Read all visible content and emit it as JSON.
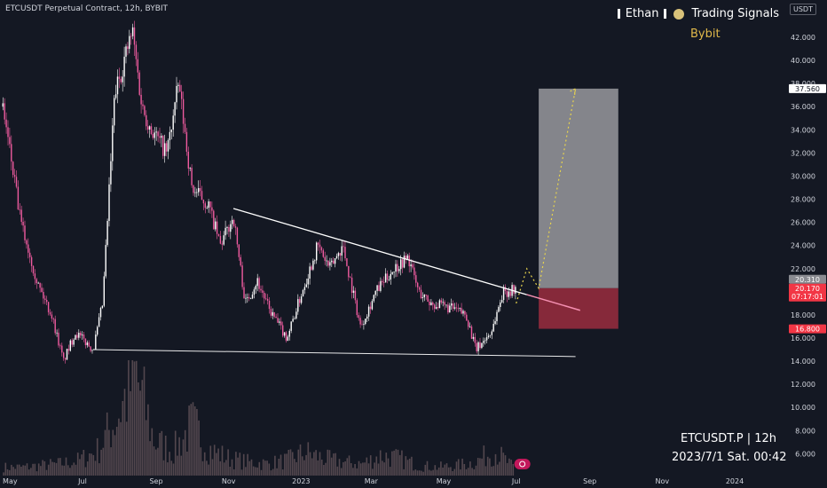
{
  "header": {
    "symbol_title": "ETCUSDT Perpetual Contract, 12h, BYBIT",
    "author": "Ethan",
    "channel": "Trading Signals",
    "exchange": "Bybit",
    "unit_badge": "USDT"
  },
  "watermark": {
    "symbol_line": "ETCUSDT.P | 12h",
    "date_line": "2023/7/1 Sat. 00:42"
  },
  "colors": {
    "background": "#141823",
    "candle": "#ef5b9f",
    "volume": "#c9a0a0",
    "profit_zone": "#8a8b91",
    "stop_zone": "#8c2a3c",
    "trend_line": "#ffffff",
    "projection": "#e8d44d",
    "price_tag": "#f23645"
  },
  "chart_data": {
    "type": "candlestick",
    "x_tick_labels": [
      "May",
      "Jul",
      "Sep",
      "Nov",
      "2023",
      "Mar",
      "May",
      "Jul",
      "Sep",
      "Nov",
      "2024"
    ],
    "y_tick_labels": [
      "6.000",
      "8.000",
      "10.000",
      "12.000",
      "14.000",
      "16.000",
      "18.000",
      "20.000",
      "22.000",
      "24.000",
      "26.000",
      "28.000",
      "30.000",
      "32.000",
      "34.000",
      "36.000",
      "38.000",
      "40.000",
      "42.000"
    ],
    "ylim": [
      5,
      43.5
    ],
    "price_path": [
      [
        "2022-04-25",
        36.0
      ],
      [
        "2022-05-10",
        26.0
      ],
      [
        "2022-05-25",
        20.5
      ],
      [
        "2022-06-05",
        18.0
      ],
      [
        "2022-06-15",
        14.0
      ],
      [
        "2022-06-25",
        16.5
      ],
      [
        "2022-07-10",
        15.0
      ],
      [
        "2022-07-18",
        19.0
      ],
      [
        "2022-07-28",
        37.0
      ],
      [
        "2022-08-05",
        40.0
      ],
      [
        "2022-08-12",
        42.5
      ],
      [
        "2022-08-20",
        36.0
      ],
      [
        "2022-08-28",
        34.0
      ],
      [
        "2022-09-10",
        32.0
      ],
      [
        "2022-09-20",
        38.0
      ],
      [
        "2022-10-01",
        29.0
      ],
      [
        "2022-10-15",
        27.5
      ],
      [
        "2022-10-25",
        24.0
      ],
      [
        "2022-11-05",
        26.5
      ],
      [
        "2022-11-15",
        19.0
      ],
      [
        "2022-11-25",
        21.0
      ],
      [
        "2022-12-05",
        18.5
      ],
      [
        "2022-12-20",
        16.0
      ],
      [
        "2023-01-05",
        21.0
      ],
      [
        "2023-01-15",
        24.0
      ],
      [
        "2023-01-25",
        22.0
      ],
      [
        "2023-02-05",
        24.0
      ],
      [
        "2023-02-20",
        17.0
      ],
      [
        "2023-03-05",
        20.0
      ],
      [
        "2023-03-20",
        22.0
      ],
      [
        "2023-04-01",
        23.0
      ],
      [
        "2023-04-10",
        20.0
      ],
      [
        "2023-04-20",
        19.0
      ],
      [
        "2023-05-10",
        18.5
      ],
      [
        "2023-05-20",
        18.0
      ],
      [
        "2023-05-28",
        15.0
      ],
      [
        "2023-06-10",
        16.5
      ],
      [
        "2023-06-20",
        20.0
      ],
      [
        "2023-07-01",
        20.17
      ]
    ],
    "volume_path": [
      0.5,
      0.5,
      0.6,
      0.7,
      0.9,
      1.5,
      3.5,
      6.0,
      2.0,
      1.5,
      3.0,
      1.5,
      1.0,
      0.8,
      0.7,
      0.9,
      1.4,
      1.0,
      0.8,
      0.7,
      1.2,
      1.0,
      0.6,
      0.5,
      0.6,
      0.8,
      1.5,
      0.5
    ],
    "trend_line_upper": [
      [
        "2022-11-05",
        27.2
      ],
      [
        "2023-07-25",
        19.3
      ]
    ],
    "trend_line_lower": [
      [
        "2022-07-10",
        15.0
      ],
      [
        "2023-08-20",
        14.4
      ]
    ],
    "long_position": {
      "start": "2023-07-20",
      "end": "2023-09-25",
      "entry": 20.31,
      "target": 37.56,
      "stop": 16.8
    },
    "projection_path": [
      [
        "2023-07-01",
        19.0
      ],
      [
        "2023-07-10",
        22.0
      ],
      [
        "2023-07-20",
        20.3
      ],
      [
        "2023-08-20",
        37.56
      ]
    ],
    "price_labels": {
      "target": "37.560",
      "entry": "20.310",
      "last": "20.170",
      "countdown": "07:17:01",
      "stop": "16.800"
    }
  }
}
